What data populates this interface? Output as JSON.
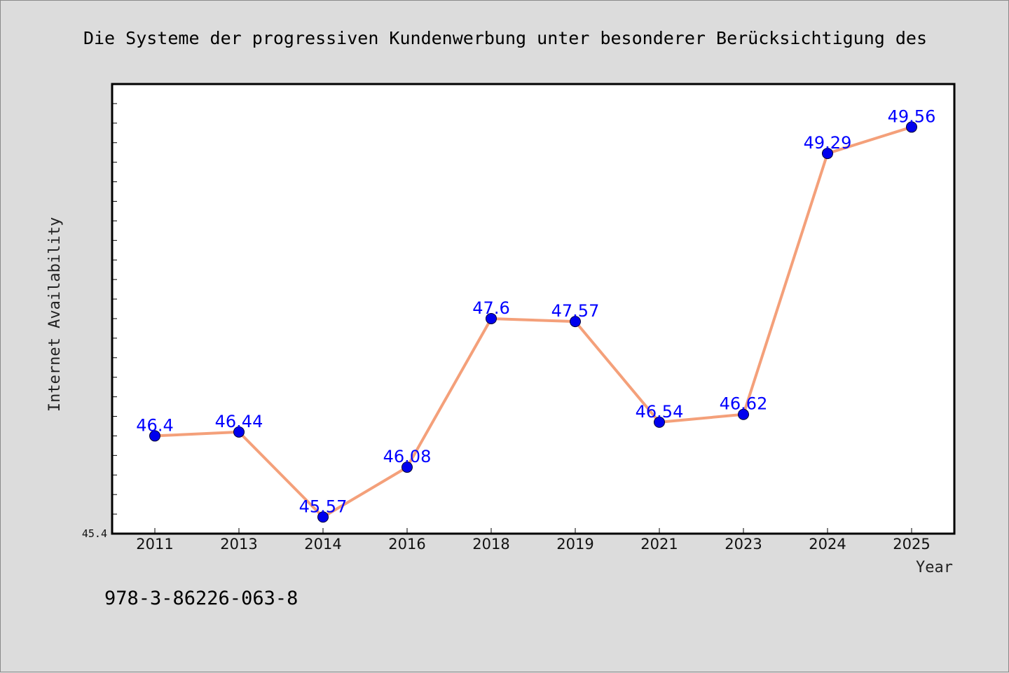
{
  "title": "Die Systeme der progressiven Kundenwerbung unter besonderer Berücksichtigung des",
  "footnote": "978-3-86226-063-8",
  "colors": {
    "background": "#dcdcdc",
    "plot_background": "#ffffff",
    "line": "#f4a07a",
    "marker": "#0000ee",
    "data_label": "#0000ff"
  },
  "chart_data": {
    "type": "line",
    "title": "Die Systeme der progressiven Kundenwerbung unter besonderer Berücksichtigung des",
    "xlabel": "Year",
    "ylabel": "Internet Availability",
    "categories": [
      "2011",
      "2013",
      "2014",
      "2016",
      "2018",
      "2019",
      "2021",
      "2023",
      "2024",
      "2025"
    ],
    "values": [
      46.4,
      46.44,
      45.57,
      46.08,
      47.6,
      47.57,
      46.54,
      46.62,
      49.29,
      49.56
    ],
    "data_labels": [
      "46.4",
      "46.44",
      "45.57",
      "46.08",
      "47.6",
      "47.57",
      "46.54",
      "46.62",
      "49.29",
      "49.56"
    ],
    "ylim": [
      45.4,
      50.0
    ],
    "y_min_label": "45.4",
    "grid": false,
    "legend": "none"
  }
}
